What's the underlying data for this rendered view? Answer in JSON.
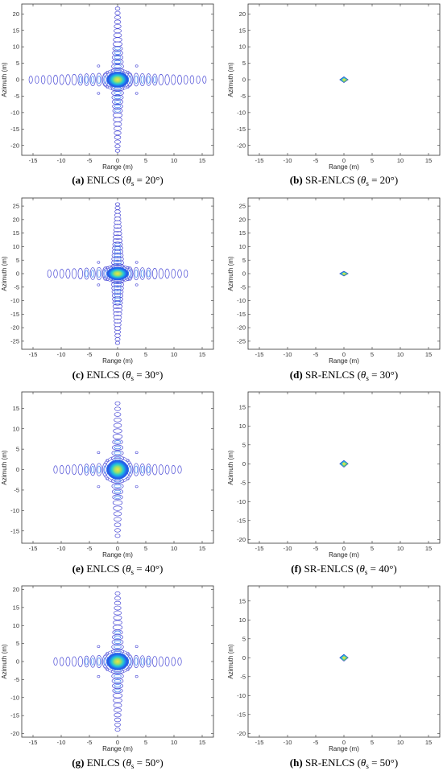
{
  "chart_data": [
    {
      "panel": "a",
      "type": "contour",
      "subject": "ENLCS",
      "theta": "20",
      "xlabel": "Range (m)",
      "ylabel": "Azimuth (m)",
      "xticks": [
        -15,
        -10,
        -5,
        0,
        5,
        10,
        15
      ],
      "yticks": [
        20,
        15,
        10,
        5,
        0,
        -5,
        -10,
        -15,
        -20
      ],
      "xlim": [
        -17,
        17
      ],
      "ylim": [
        -23,
        23
      ],
      "grid": false,
      "peak": {
        "x": 0,
        "y": 0
      },
      "range_sidelobe_extent": 16,
      "azimuth_sidelobe_extent": 22
    },
    {
      "panel": "b",
      "type": "contour",
      "subject": "SR-ENLCS",
      "theta": "20",
      "xlabel": "Range (m)",
      "ylabel": "Azimuth (m)",
      "xticks": [
        -15,
        -10,
        -5,
        0,
        5,
        10,
        15
      ],
      "yticks": [
        20,
        15,
        10,
        5,
        0,
        -5,
        -10,
        -15,
        -20
      ],
      "xlim": [
        -17,
        17
      ],
      "ylim": [
        -23,
        23
      ],
      "grid": false,
      "peak": {
        "x": 0,
        "y": 0
      }
    },
    {
      "panel": "c",
      "type": "contour",
      "subject": "ENLCS",
      "theta": "30",
      "xlabel": "Range (m)",
      "ylabel": "Azimuth (m)",
      "xticks": [
        -15,
        -10,
        -5,
        0,
        5,
        10,
        15
      ],
      "yticks": [
        25,
        20,
        15,
        10,
        5,
        0,
        -5,
        -10,
        -15,
        -20,
        -25
      ],
      "xlim": [
        -17,
        17
      ],
      "ylim": [
        -28,
        28
      ],
      "grid": false,
      "peak": {
        "x": 0,
        "y": 0
      },
      "range_sidelobe_extent": 13,
      "azimuth_sidelobe_extent": 26
    },
    {
      "panel": "d",
      "type": "contour",
      "subject": "SR-ENLCS",
      "theta": "30",
      "xlabel": "Range (m)",
      "ylabel": "Azimuth (m)",
      "xticks": [
        -15,
        -10,
        -5,
        0,
        5,
        10,
        15
      ],
      "yticks": [
        25,
        20,
        15,
        10,
        5,
        0,
        -5,
        -10,
        -15,
        -20,
        -25
      ],
      "xlim": [
        -17,
        17
      ],
      "ylim": [
        -28,
        28
      ],
      "grid": false,
      "peak": {
        "x": 0,
        "y": 0
      }
    },
    {
      "panel": "e",
      "type": "contour",
      "subject": "ENLCS",
      "theta": "40",
      "xlabel": "Range (m)",
      "ylabel": "Azimuth (m)",
      "xticks": [
        -15,
        -10,
        -5,
        0,
        5,
        10,
        15
      ],
      "yticks": [
        15,
        10,
        5,
        0,
        -5,
        -10,
        -15
      ],
      "xlim": [
        -17,
        17
      ],
      "ylim": [
        -18,
        19
      ],
      "grid": false,
      "peak": {
        "x": 0,
        "y": 0
      },
      "range_sidelobe_extent": 12,
      "azimuth_sidelobe_extent": 17
    },
    {
      "panel": "f",
      "type": "contour",
      "subject": "SR-ENLCS",
      "theta": "40",
      "xlabel": "Range (m)",
      "ylabel": "Azimuth (m)",
      "xticks": [
        -15,
        -10,
        -5,
        0,
        5,
        10,
        15
      ],
      "yticks": [
        15,
        10,
        5,
        0,
        -5,
        -10,
        -15,
        -20
      ],
      "xlim": [
        -17,
        17
      ],
      "ylim": [
        -21,
        19
      ],
      "grid": false,
      "peak": {
        "x": 0,
        "y": 0
      }
    },
    {
      "panel": "g",
      "type": "contour",
      "subject": "ENLCS",
      "theta": "50",
      "xlabel": "Range (m)",
      "ylabel": "Azimuth (m)",
      "xticks": [
        -15,
        -10,
        -5,
        0,
        5,
        10,
        15
      ],
      "yticks": [
        20,
        15,
        10,
        5,
        0,
        -5,
        -10,
        -15,
        -20
      ],
      "xlim": [
        -17,
        17
      ],
      "ylim": [
        -21,
        21
      ],
      "grid": false,
      "peak": {
        "x": 0,
        "y": 0
      },
      "range_sidelobe_extent": 12,
      "azimuth_sidelobe_extent": 20
    },
    {
      "panel": "h",
      "type": "contour",
      "subject": "SR-ENLCS",
      "theta": "50",
      "xlabel": "Range (m)",
      "ylabel": "Azimuth (m)",
      "xticks": [
        -15,
        -10,
        -5,
        0,
        5,
        10,
        15
      ],
      "yticks": [
        15,
        10,
        5,
        0,
        -5,
        -10,
        -15,
        -20
      ],
      "xlim": [
        -17,
        17
      ],
      "ylim": [
        -21,
        19
      ],
      "grid": false,
      "peak": {
        "x": 0,
        "y": 0
      }
    }
  ],
  "captions": [
    {
      "panel": "a",
      "label": "(a)",
      "text": "ENLCS (",
      "theta_sym": "θ",
      "sub": "s",
      "eq": " = 20°)"
    },
    {
      "panel": "b",
      "label": "(b)",
      "text": "SR-ENLCS (",
      "theta_sym": "θ",
      "sub": "s",
      "eq": " = 20°)"
    },
    {
      "panel": "c",
      "label": "(c)",
      "text": "ENLCS (",
      "theta_sym": "θ",
      "sub": "s",
      "eq": " = 30°)"
    },
    {
      "panel": "d",
      "label": "(d)",
      "text": "SR-ENLCS (",
      "theta_sym": "θ",
      "sub": "s",
      "eq": " = 30°)"
    },
    {
      "panel": "e",
      "label": "(e)",
      "text": "ENLCS (",
      "theta_sym": "θ",
      "sub": "s",
      "eq": " = 40°)"
    },
    {
      "panel": "f",
      "label": "(f)",
      "text": "SR-ENLCS (",
      "theta_sym": "θ",
      "sub": "s",
      "eq": " = 40°)"
    },
    {
      "panel": "g",
      "label": "(g)",
      "text": "ENLCS (",
      "theta_sym": "θ",
      "sub": "s",
      "eq": " = 50°)"
    },
    {
      "panel": "h",
      "label": "(h)",
      "text": "SR-ENLCS (",
      "theta_sym": "θ",
      "sub": "s",
      "eq": " = 50°)"
    }
  ],
  "colors": {
    "sidelobe": "#4b4bd6",
    "ring_outer": "#6f6fe0",
    "core_blue": "#1e6ff0",
    "core_cyan": "#22c7d6",
    "core_green": "#6cd46a",
    "core_yellow": "#f4e242",
    "axes": "#333333"
  }
}
